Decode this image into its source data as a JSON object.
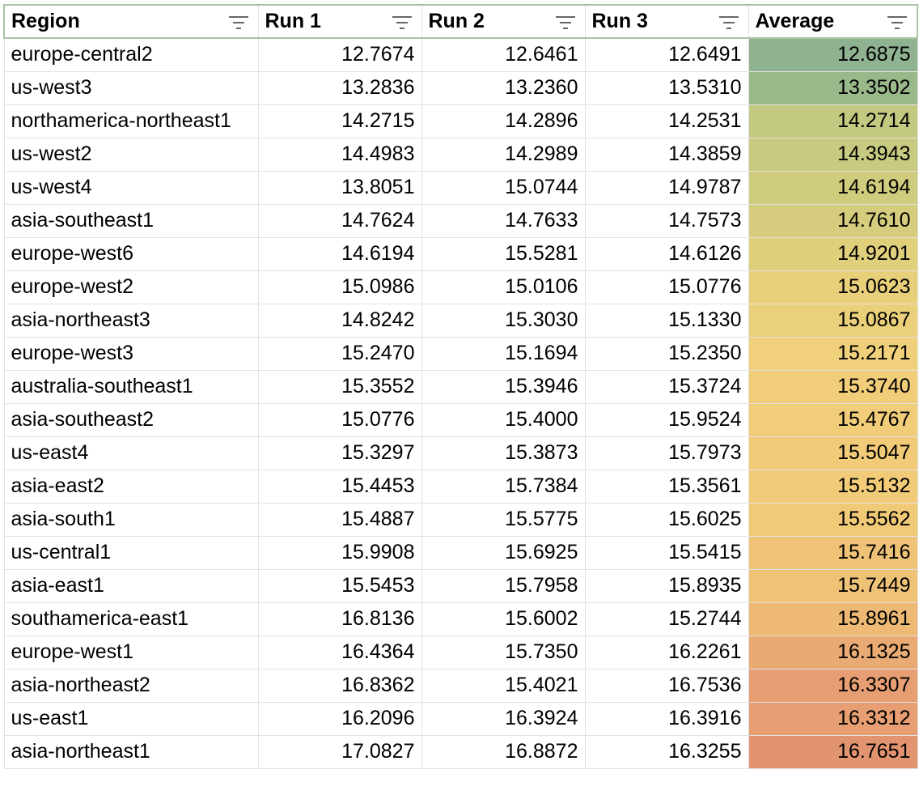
{
  "columns": [
    "Region",
    "Run 1",
    "Run 2",
    "Run 3",
    "Average"
  ],
  "rows": [
    {
      "region": "europe-central2",
      "run1": "12.7674",
      "run2": "12.6461",
      "run3": "12.6491",
      "average": "12.6875",
      "color": "#8fb291"
    },
    {
      "region": "us-west3",
      "run1": "13.2836",
      "run2": "13.2360",
      "run3": "13.5310",
      "average": "13.3502",
      "color": "#9ab98b"
    },
    {
      "region": "northamerica-northeast1",
      "run1": "14.2715",
      "run2": "14.2896",
      "run3": "14.2531",
      "average": "14.2714",
      "color": "#c4c982"
    },
    {
      "region": "us-west2",
      "run1": "14.4983",
      "run2": "14.2989",
      "run3": "14.3859",
      "average": "14.3943",
      "color": "#c7ca80"
    },
    {
      "region": "us-west4",
      "run1": "13.8051",
      "run2": "15.0744",
      "run3": "14.9787",
      "average": "14.6194",
      "color": "#cfcc7e"
    },
    {
      "region": "asia-southeast1",
      "run1": "14.7624",
      "run2": "14.7633",
      "run3": "14.7573",
      "average": "14.7610",
      "color": "#d5cd7d"
    },
    {
      "region": "europe-west6",
      "run1": "14.6194",
      "run2": "15.5281",
      "run3": "14.6126",
      "average": "14.9201",
      "color": "#e0cf7b"
    },
    {
      "region": "europe-west2",
      "run1": "15.0986",
      "run2": "15.0106",
      "run3": "15.0776",
      "average": "15.0623",
      "color": "#e8d07a"
    },
    {
      "region": "asia-northeast3",
      "run1": "14.8242",
      "run2": "15.3030",
      "run3": "15.1330",
      "average": "15.0867",
      "color": "#ead07a"
    },
    {
      "region": "europe-west3",
      "run1": "15.2470",
      "run2": "15.1694",
      "run3": "15.2350",
      "average": "15.2171",
      "color": "#f0d07a"
    },
    {
      "region": "australia-southeast1",
      "run1": "15.3552",
      "run2": "15.3946",
      "run3": "15.3724",
      "average": "15.3740",
      "color": "#f1cd79"
    },
    {
      "region": "asia-southeast2",
      "run1": "15.0776",
      "run2": "15.4000",
      "run3": "15.9524",
      "average": "15.4767",
      "color": "#f1cc79"
    },
    {
      "region": "us-east4",
      "run1": "15.3297",
      "run2": "15.3873",
      "run3": "15.7973",
      "average": "15.5047",
      "color": "#f1cb78"
    },
    {
      "region": "asia-east2",
      "run1": "15.4453",
      "run2": "15.7384",
      "run3": "15.3561",
      "average": "15.5132",
      "color": "#f1cb78"
    },
    {
      "region": "asia-south1",
      "run1": "15.4887",
      "run2": "15.5775",
      "run3": "15.6025",
      "average": "15.5562",
      "color": "#f1ca78"
    },
    {
      "region": "us-central1",
      "run1": "15.9908",
      "run2": "15.6925",
      "run3": "15.5415",
      "average": "15.7416",
      "color": "#efc377"
    },
    {
      "region": "asia-east1",
      "run1": "15.5453",
      "run2": "15.7958",
      "run3": "15.8935",
      "average": "15.7449",
      "color": "#efc377"
    },
    {
      "region": "southamerica-east1",
      "run1": "16.8136",
      "run2": "15.6002",
      "run3": "15.2744",
      "average": "15.8961",
      "color": "#edb974"
    },
    {
      "region": "europe-west1",
      "run1": "16.4364",
      "run2": "15.7350",
      "run3": "16.2261",
      "average": "16.1325",
      "color": "#e9ab73"
    },
    {
      "region": "asia-northeast2",
      "run1": "16.8362",
      "run2": "15.4021",
      "run3": "16.7536",
      "average": "16.3307",
      "color": "#e69e72"
    },
    {
      "region": "us-east1",
      "run1": "16.2096",
      "run2": "16.3924",
      "run3": "16.3916",
      "average": "16.3312",
      "color": "#e69e72"
    },
    {
      "region": "asia-northeast1",
      "run1": "17.0827",
      "run2": "16.8872",
      "run3": "16.3255",
      "average": "16.7651",
      "color": "#e29470"
    }
  ]
}
